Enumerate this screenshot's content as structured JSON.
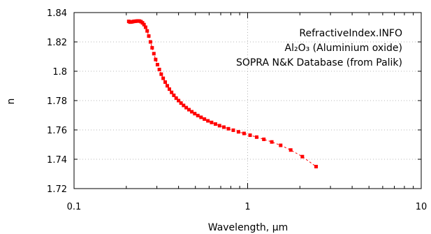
{
  "chart_data": {
    "type": "scatter",
    "annotations": [
      "RefractiveIndex.INFO",
      "Al₂O₃ (Aluminium oxide)",
      "SOPRA N&K Database (from Palik)"
    ],
    "xlabel": "Wavelength, µm",
    "ylabel": "n",
    "xscale": "log",
    "xlim": [
      0.1,
      10
    ],
    "ylim": [
      1.72,
      1.84
    ],
    "x_ticks": [
      0.1,
      1,
      10
    ],
    "x_tick_labels": [
      "0.1",
      "1",
      "10"
    ],
    "y_ticks": [
      1.72,
      1.74,
      1.76,
      1.78,
      1.8,
      1.82,
      1.84
    ],
    "y_tick_labels": [
      "1.72",
      "1.74",
      "1.76",
      "1.78",
      "1.8",
      "1.82",
      "1.84"
    ],
    "grid": true,
    "marker_color": "#ff0000",
    "line_style": "dashed",
    "series": [
      {
        "x": [
          0.2066,
          0.2101,
          0.2138,
          0.2175,
          0.2214,
          0.2254,
          0.2296,
          0.2339,
          0.2384,
          0.2431,
          0.248,
          0.253,
          0.2583,
          0.2638,
          0.2695,
          0.2755,
          0.2818,
          0.2883,
          0.2952,
          0.3024,
          0.31,
          0.3179,
          0.3263,
          0.3351,
          0.3444,
          0.3542,
          0.3647,
          0.3757,
          0.3875,
          0.3999,
          0.4133,
          0.4275,
          0.4428,
          0.4592,
          0.4769,
          0.4959,
          0.5166,
          0.5391,
          0.5636,
          0.5904,
          0.6199,
          0.6526,
          0.6888,
          0.7293,
          0.7749,
          0.8266,
          0.8856,
          0.9537,
          1.0332,
          1.1271,
          1.2398,
          1.3776,
          1.5498,
          1.7712,
          2.0664,
          2.4797
        ],
        "y": [
          1.834,
          1.8335,
          1.8336,
          1.8338,
          1.834,
          1.8341,
          1.8342,
          1.8343,
          1.8342,
          1.8338,
          1.833,
          1.8318,
          1.83,
          1.8275,
          1.824,
          1.82,
          1.816,
          1.812,
          1.808,
          1.8045,
          1.8012,
          1.798,
          1.7952,
          1.7926,
          1.7901,
          1.7878,
          1.7856,
          1.7836,
          1.7817,
          1.78,
          1.7783,
          1.7767,
          1.7752,
          1.7738,
          1.7724,
          1.7711,
          1.7698,
          1.7686,
          1.7674,
          1.7662,
          1.7651,
          1.764,
          1.7629,
          1.7619,
          1.7608,
          1.7598,
          1.7587,
          1.7576,
          1.7564,
          1.7551,
          1.7536,
          1.7518,
          1.7495,
          1.7463,
          1.7418,
          1.735
        ]
      }
    ]
  }
}
